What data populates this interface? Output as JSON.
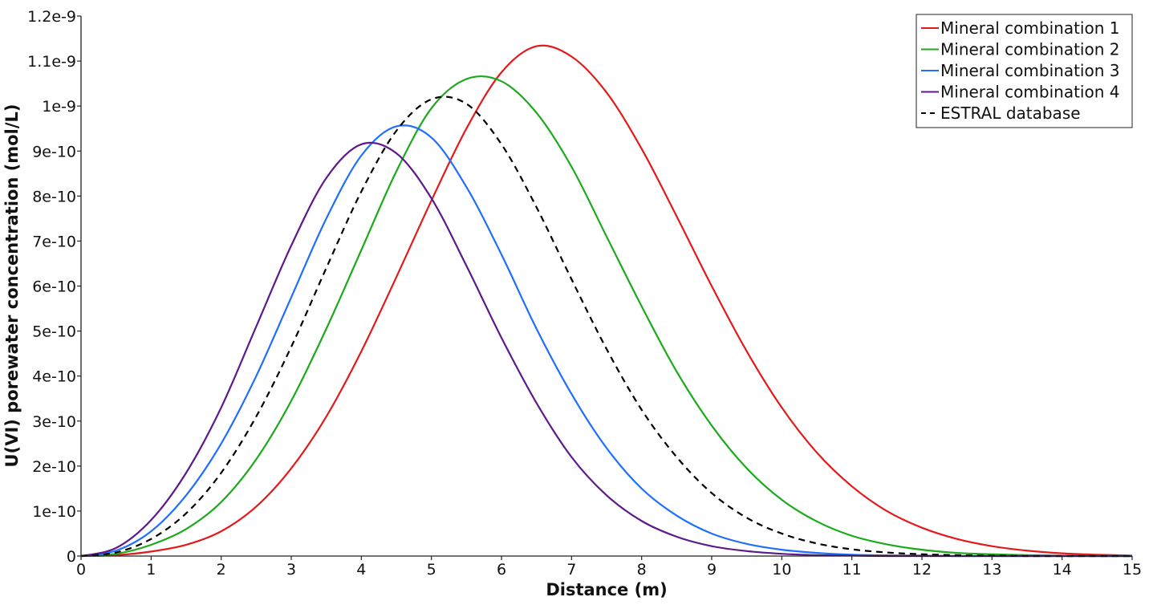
{
  "chart_data": {
    "type": "line",
    "title": "",
    "xlabel": "Distance (m)",
    "ylabel": "U(VI) porewater concentration (mol/L)",
    "xlim": [
      0,
      15
    ],
    "ylim": [
      0,
      1.2e-09
    ],
    "grid": false,
    "legend_position": "top-right",
    "x_ticks": [
      0,
      1,
      2,
      3,
      4,
      5,
      6,
      7,
      8,
      9,
      10,
      11,
      12,
      13,
      14,
      15
    ],
    "x_tick_labels": [
      "0",
      "1",
      "2",
      "3",
      "4",
      "5",
      "6",
      "7",
      "8",
      "9",
      "10",
      "11",
      "12",
      "13",
      "14",
      "15"
    ],
    "y_ticks": [
      0,
      1e-10,
      2e-10,
      3e-10,
      4e-10,
      5e-10,
      6e-10,
      7e-10,
      8e-10,
      9e-10,
      1e-09,
      1.1e-09,
      1.2e-09
    ],
    "y_tick_labels": [
      "0",
      "1e-10",
      "2e-10",
      "3e-10",
      "4e-10",
      "5e-10",
      "6e-10",
      "7e-10",
      "8e-10",
      "9e-10",
      "1e-9",
      "1.1e-9",
      "1.2e-9"
    ],
    "x": [
      0,
      0.5,
      1,
      1.5,
      2,
      2.5,
      3,
      3.5,
      4,
      4.5,
      5,
      5.5,
      6,
      6.5,
      7,
      7.5,
      8,
      8.5,
      9,
      9.5,
      10,
      10.5,
      11,
      11.5,
      12,
      12.5,
      13,
      13.5,
      14,
      14.5,
      15
    ],
    "series": [
      {
        "name": "Mineral combination 1",
        "color": "#e31a1c",
        "dash": "solid",
        "values": [
          0,
          2e-12,
          1e-11,
          2.5e-11,
          5.5e-11,
          1.1e-10,
          1.95e-10,
          3.1e-10,
          4.55e-10,
          6.2e-10,
          7.9e-10,
          9.5e-10,
          1.075e-09,
          1.133e-09,
          1.11e-09,
          1.03e-09,
          9.05e-10,
          7.55e-10,
          6e-10,
          4.55e-10,
          3.3e-10,
          2.3e-10,
          1.55e-10,
          1e-10,
          6.3e-11,
          3.8e-11,
          2.2e-11,
          1.2e-11,
          6e-12,
          3e-12,
          1e-12
        ]
      },
      {
        "name": "Mineral combination 2",
        "color": "#1aaa1a",
        "dash": "solid",
        "values": [
          0,
          5e-12,
          2.5e-11,
          6e-11,
          1.2e-10,
          2.15e-10,
          3.45e-10,
          5.05e-10,
          6.8e-10,
          8.55e-10,
          9.95e-10,
          1.06e-09,
          1.055e-09,
          9.85e-10,
          8.65e-10,
          7.1e-10,
          5.55e-10,
          4.1e-10,
          2.9e-10,
          1.95e-10,
          1.25e-10,
          7.7e-11,
          4.5e-11,
          2.6e-11,
          1.4e-11,
          7e-12,
          4e-12,
          2e-12,
          1e-12,
          0,
          0
        ]
      },
      {
        "name": "Mineral combination 3",
        "color": "#1f6fff",
        "dash": "solid",
        "values": [
          0,
          1.2e-11,
          5.5e-11,
          1.35e-10,
          2.5e-10,
          4e-10,
          5.75e-10,
          7.5e-10,
          8.9e-10,
          9.55e-10,
          9.3e-10,
          8.2e-10,
          6.7e-10,
          5.05e-10,
          3.6e-10,
          2.4e-10,
          1.5e-10,
          9e-11,
          5e-11,
          2.7e-11,
          1.4e-11,
          7e-12,
          3e-12,
          1.5e-12,
          1e-12,
          0,
          0,
          0,
          0,
          0,
          0
        ]
      },
      {
        "name": "Mineral combination 4",
        "color": "#5c1a8c",
        "dash": "solid",
        "values": [
          0,
          1.8e-11,
          8e-11,
          1.85e-10,
          3.3e-10,
          5.1e-10,
          6.9e-10,
          8.4e-10,
          9.15e-10,
          8.95e-10,
          7.95e-10,
          6.45e-10,
          4.85e-10,
          3.4e-10,
          2.2e-10,
          1.35e-10,
          7.8e-11,
          4.3e-11,
          2.2e-11,
          1.1e-11,
          5e-12,
          2e-12,
          1e-12,
          0,
          0,
          0,
          0,
          0,
          0,
          0,
          0
        ]
      },
      {
        "name": "ESTRAL database",
        "color": "#000000",
        "dash": "dashed",
        "values": [
          0,
          8e-12,
          3.8e-11,
          9.5e-11,
          1.85e-10,
          3.1e-10,
          4.65e-10,
          6.4e-10,
          8.1e-10,
          9.45e-10,
          1.015e-09,
          1.005e-09,
          9.15e-10,
          7.75e-10,
          6.15e-10,
          4.6e-10,
          3.25e-10,
          2.2e-10,
          1.4e-10,
          8.5e-11,
          5e-11,
          2.8e-11,
          1.5e-11,
          8e-12,
          4e-12,
          2e-12,
          1e-12,
          0,
          0,
          0,
          0
        ]
      }
    ]
  }
}
